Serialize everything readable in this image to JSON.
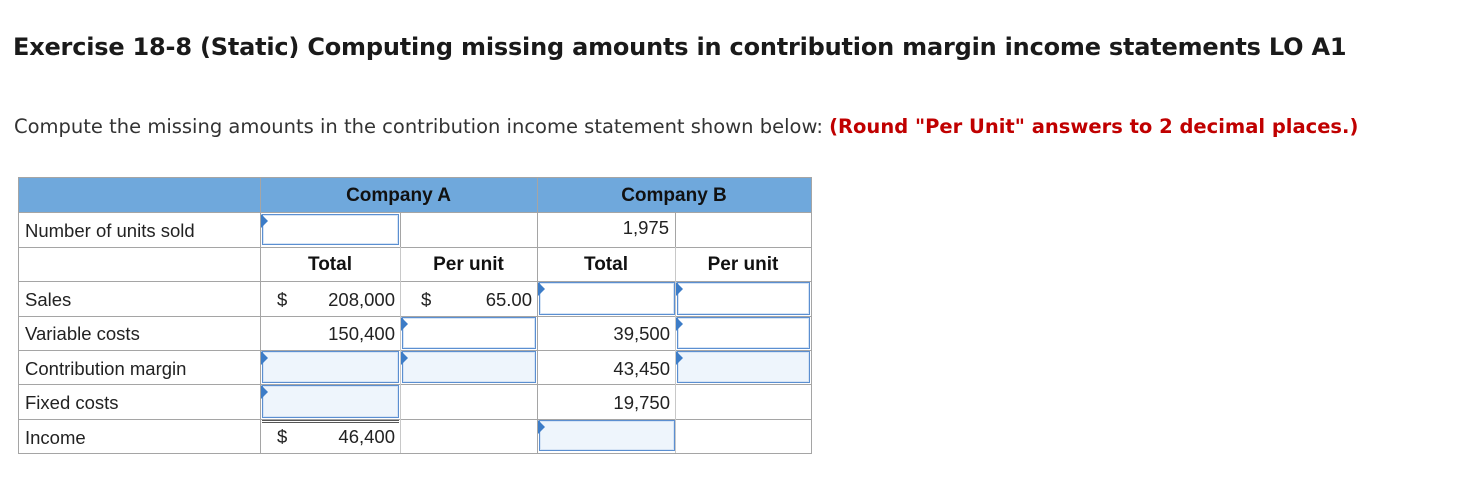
{
  "title": "Exercise 18-8 (Static) Computing missing amounts in contribution margin income statements LO A1",
  "instruction": {
    "text": "Compute the missing amounts in the contribution income statement shown below: ",
    "note": "(Round \"Per Unit\" answers to 2 decimal places.)"
  },
  "table": {
    "company_a": "Company A",
    "company_b": "Company B",
    "col_total": "Total",
    "col_per_unit": "Per unit",
    "dollar": "$",
    "rows": {
      "units": {
        "label": "Number of units sold",
        "b_total": "1,975"
      },
      "sales": {
        "label": "Sales",
        "a_total": "208,000",
        "a_unit": "65.00"
      },
      "variable": {
        "label": "Variable costs",
        "a_total": "150,400",
        "b_total": "39,500"
      },
      "contribution": {
        "label": "Contribution margin",
        "b_total": "43,450"
      },
      "fixed": {
        "label": "Fixed costs",
        "b_total": "19,750"
      },
      "income": {
        "label": "Income",
        "a_total": "46,400"
      }
    }
  }
}
